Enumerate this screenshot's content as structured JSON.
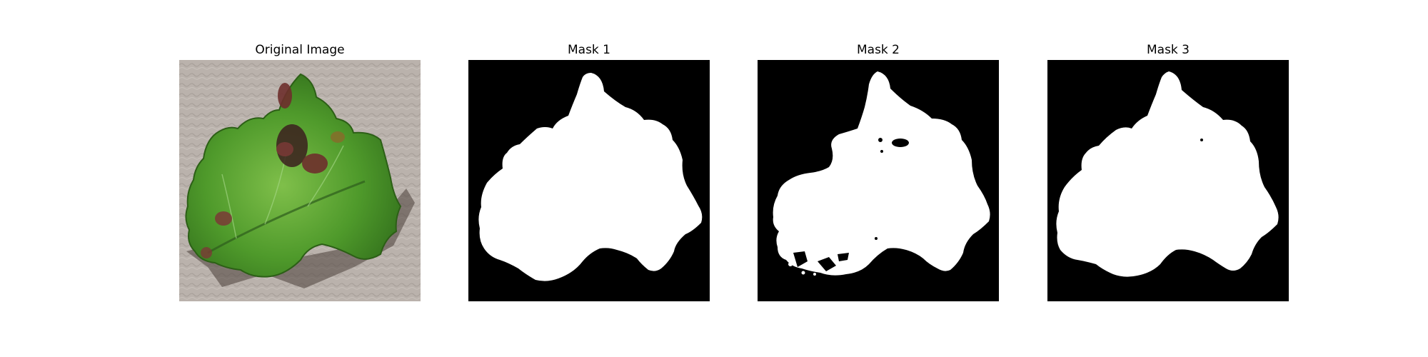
{
  "figure": {
    "panels": [
      {
        "title": "Original Image"
      },
      {
        "title": "Mask 1"
      },
      {
        "title": "Mask 2"
      },
      {
        "title": "Mask 3"
      }
    ]
  },
  "colors": {
    "mask_background": "#000000",
    "mask_foreground": "#ffffff",
    "leaf_green": "#4e9a2a",
    "lesion_brown": "#6e2f2c",
    "surface_grey": "#b9b1ab"
  }
}
